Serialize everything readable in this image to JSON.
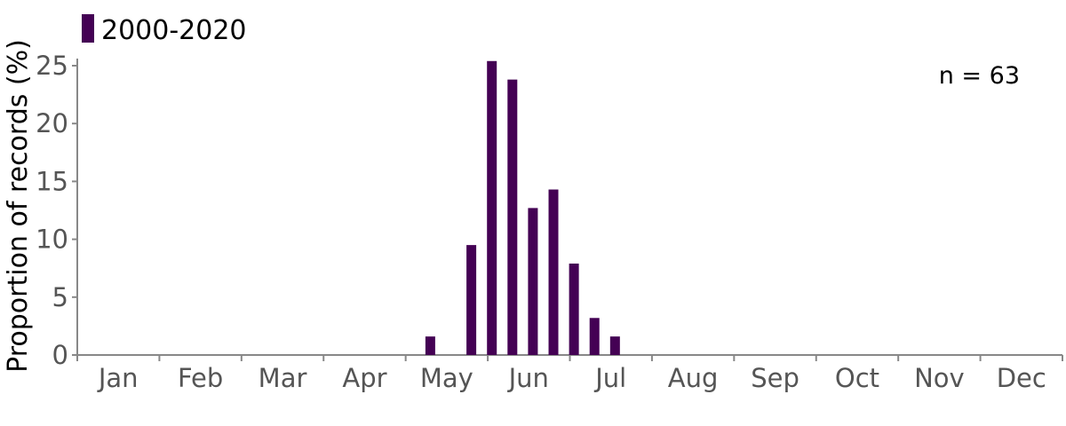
{
  "chart_data": {
    "type": "bar",
    "title": "",
    "xlabel": "",
    "ylabel": "Proportion of records (%)",
    "ylim": [
      0,
      25
    ],
    "yticks": [
      0,
      5,
      10,
      15,
      20,
      25
    ],
    "months": [
      "Jan",
      "Feb",
      "Mar",
      "Apr",
      "May",
      "Jun",
      "Jul",
      "Aug",
      "Sep",
      "Oct",
      "Nov",
      "Dec"
    ],
    "x_unit": "month (bars at roughly weekly intervals)",
    "grid": false,
    "legend_position": "top-left",
    "series": [
      {
        "name": "2000-2020",
        "color": "#440154",
        "points": [
          {
            "x": 5.3,
            "y": 1.6
          },
          {
            "x": 5.8,
            "y": 9.5
          },
          {
            "x": 6.05,
            "y": 25.4
          },
          {
            "x": 6.3,
            "y": 23.8
          },
          {
            "x": 6.55,
            "y": 12.7
          },
          {
            "x": 6.8,
            "y": 14.3
          },
          {
            "x": 7.05,
            "y": 7.9
          },
          {
            "x": 7.3,
            "y": 3.2
          },
          {
            "x": 7.55,
            "y": 1.6
          }
        ]
      }
    ],
    "annotations": [
      {
        "text": "n = 63",
        "position": "top-right"
      }
    ]
  }
}
